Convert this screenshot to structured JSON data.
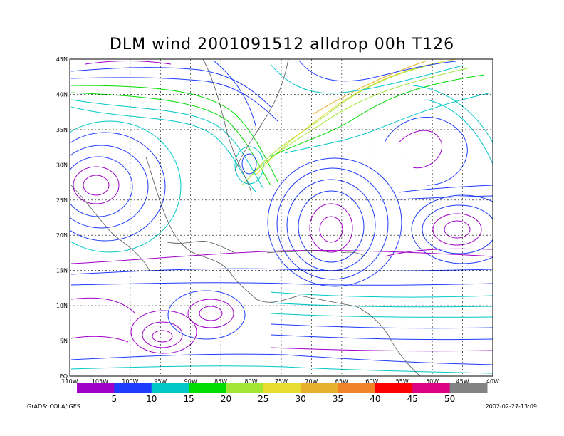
{
  "title": "DLM wind 2001091512 alldrop 00h T126",
  "footer": {
    "left": "GrADS: COLA/IGES",
    "right": "2002-02-27-13:09"
  },
  "axes": {
    "x_ticks": [
      "110W",
      "105W",
      "100W",
      "95W",
      "90W",
      "85W",
      "80W",
      "75W",
      "70W",
      "65W",
      "60W",
      "55W",
      "50W",
      "45W",
      "40W"
    ],
    "x_values": [
      -110,
      -105,
      -100,
      -95,
      -90,
      -85,
      -80,
      -75,
      -70,
      -65,
      -60,
      -55,
      -50,
      -45,
      -40
    ],
    "y_ticks": [
      "EQ",
      "5N",
      "10N",
      "15N",
      "20N",
      "25N",
      "30N",
      "35N",
      "40N",
      "45N"
    ],
    "y_values": [
      0,
      5,
      10,
      15,
      20,
      25,
      30,
      35,
      40,
      45
    ],
    "lon_range": [
      -110,
      -40
    ],
    "lat_range": [
      0,
      45
    ],
    "grid": true
  },
  "colorbar": {
    "labels": [
      "5",
      "10",
      "15",
      "20",
      "25",
      "30",
      "35",
      "40",
      "45",
      "50"
    ],
    "colors": [
      "#a000c8",
      "#1e3cff",
      "#00c8c8",
      "#00dc00",
      "#a0e632",
      "#e6dc32",
      "#e6af2d",
      "#f08228",
      "#fa0000",
      "#dc0082",
      "#828282"
    ]
  },
  "features": {
    "anticyclone_centers": [
      {
        "lon": -106,
        "lat": 27.5
      },
      {
        "lon": -66,
        "lat": 21
      },
      {
        "lon": -45,
        "lat": 21
      },
      {
        "lon": -95,
        "lat": 5.5
      },
      {
        "lon": -88,
        "lat": 9
      }
    ]
  }
}
